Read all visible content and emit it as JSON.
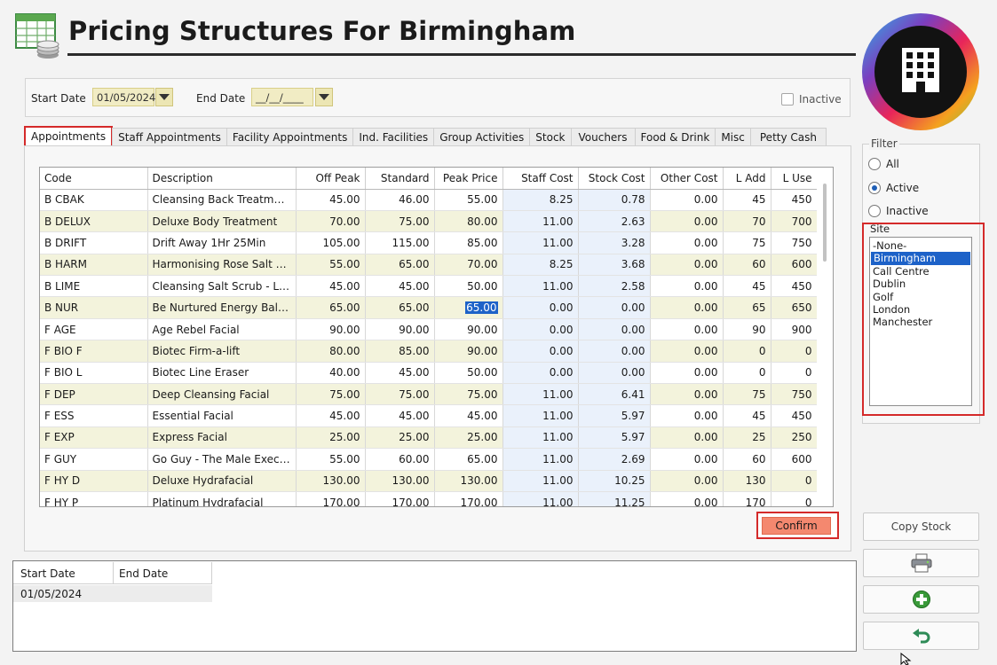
{
  "header": {
    "title": "Pricing Structures For Birmingham"
  },
  "dates": {
    "start_label": "Start Date",
    "start_value": "01/05/2024",
    "end_label": "End Date",
    "end_value": "__/__/____",
    "inactive_label": "Inactive"
  },
  "tabs": [
    "Appointments",
    "Staff Appointments",
    "Facility Appointments",
    "Ind. Facilities",
    "Group Activities",
    "Stock",
    "Vouchers",
    "Food & Drink",
    "Misc",
    "Petty Cash"
  ],
  "grid": {
    "columns": [
      "Code",
      "Description",
      "Off Peak",
      "Standard",
      "Peak Price",
      "Staff Cost",
      "Stock Cost",
      "Other Cost",
      "L Add",
      "L Use"
    ],
    "rows": [
      [
        "B CBAK",
        "Cleansing Back Treatment",
        "45.00",
        "46.00",
        "55.00",
        "8.25",
        "0.78",
        "0.00",
        "45",
        "450"
      ],
      [
        "B DELUX",
        "Deluxe Body Treatment",
        "70.00",
        "75.00",
        "80.00",
        "11.00",
        "2.63",
        "0.00",
        "70",
        "700"
      ],
      [
        "B DRIFT",
        "Drift Away 1Hr 25Min",
        "105.00",
        "115.00",
        "85.00",
        "11.00",
        "3.28",
        "0.00",
        "75",
        "750"
      ],
      [
        "B HARM",
        "Harmonising Rose Salt Ritual",
        "55.00",
        "65.00",
        "70.00",
        "8.25",
        "3.68",
        "0.00",
        "60",
        "600"
      ],
      [
        "B LIME",
        "Cleansing Salt Scrub - Lime...",
        "45.00",
        "45.00",
        "50.00",
        "11.00",
        "2.58",
        "0.00",
        "45",
        "450"
      ],
      [
        "B NUR",
        "Be Nurtured Energy Balancer",
        "65.00",
        "65.00",
        "65.00",
        "0.00",
        "0.00",
        "0.00",
        "65",
        "650"
      ],
      [
        "F AGE",
        "Age Rebel Facial",
        "90.00",
        "90.00",
        "90.00",
        "0.00",
        "0.00",
        "0.00",
        "90",
        "900"
      ],
      [
        "F BIO F",
        "Biotec Firm-a-lift",
        "80.00",
        "85.00",
        "90.00",
        "0.00",
        "0.00",
        "0.00",
        "0",
        "0"
      ],
      [
        "F BIO L",
        "Biotec Line Eraser",
        "40.00",
        "45.00",
        "50.00",
        "0.00",
        "0.00",
        "0.00",
        "0",
        "0"
      ],
      [
        "F DEP",
        "Deep Cleansing Facial",
        "75.00",
        "75.00",
        "75.00",
        "11.00",
        "6.41",
        "0.00",
        "75",
        "750"
      ],
      [
        "F ESS",
        "Essential Facial",
        "45.00",
        "45.00",
        "45.00",
        "11.00",
        "5.97",
        "0.00",
        "45",
        "450"
      ],
      [
        "F EXP",
        "Express Facial",
        "25.00",
        "25.00",
        "25.00",
        "11.00",
        "5.97",
        "0.00",
        "25",
        "250"
      ],
      [
        "F GUY",
        "Go Guy - The Male Executi...",
        "55.00",
        "60.00",
        "65.00",
        "11.00",
        "2.69",
        "0.00",
        "60",
        "600"
      ],
      [
        "F HY D",
        "Deluxe Hydrafacial",
        "130.00",
        "130.00",
        "130.00",
        "11.00",
        "10.25",
        "0.00",
        "130",
        "0"
      ],
      [
        "F HY P",
        "Platinum Hydrafacial",
        "170.00",
        "170.00",
        "170.00",
        "11.00",
        "11.25",
        "0.00",
        "170",
        "0"
      ]
    ]
  },
  "confirm_label": "Confirm",
  "history": {
    "columns": [
      "Start Date",
      "End Date"
    ],
    "rows": [
      [
        "01/05/2024",
        ""
      ]
    ]
  },
  "filter": {
    "title": "Filter",
    "options": [
      "All",
      "Active",
      "Inactive"
    ],
    "selected": "Active",
    "site_label": "Site",
    "sites": [
      "-None-",
      "Birmingham",
      "Call Centre",
      "Dublin",
      "Golf",
      "London",
      "Manchester"
    ],
    "selected_site": "Birmingham"
  },
  "side_buttons": {
    "copy_stock": "Copy Stock",
    "icons": [
      "printer-icon",
      "add-icon",
      "undo-icon"
    ]
  },
  "colors": {
    "accent_red": "#d42a2a",
    "selection_blue": "#1d62c8",
    "confirm": "#f4886f",
    "alt_row": "#f3f3dc",
    "date_field": "#f1ecc4"
  }
}
